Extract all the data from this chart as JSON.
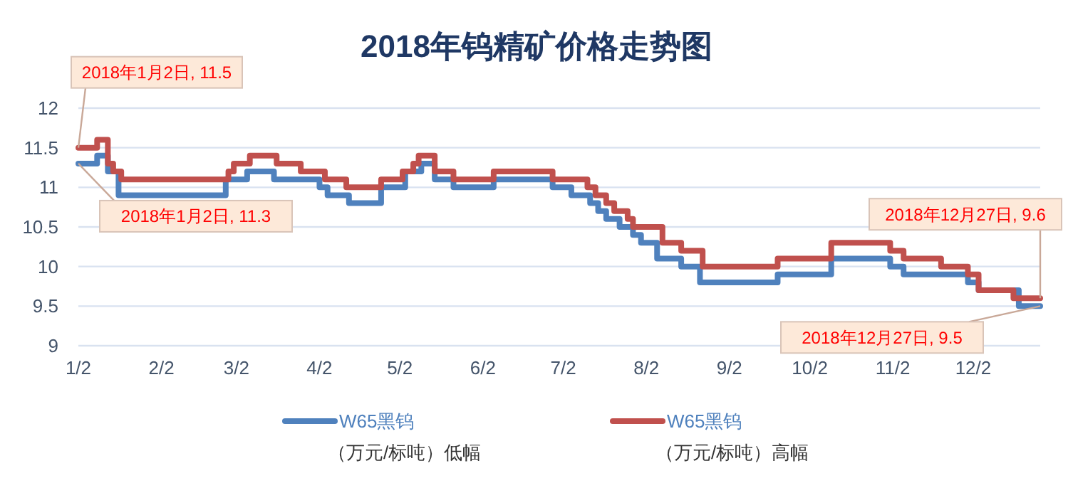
{
  "chart_data": {
    "type": "step",
    "title": "2018年钨精矿价格走势图",
    "xlim": [
      "2018-01-02",
      "2018-12-27"
    ],
    "xticks": [
      {
        "value": "2018-01-02",
        "label": "1/2"
      },
      {
        "value": "2018-02-02",
        "label": "2/2"
      },
      {
        "value": "2018-03-02",
        "label": "3/2"
      },
      {
        "value": "2018-04-02",
        "label": "4/2"
      },
      {
        "value": "2018-05-02",
        "label": "5/2"
      },
      {
        "value": "2018-06-02",
        "label": "6/2"
      },
      {
        "value": "2018-07-02",
        "label": "7/2"
      },
      {
        "value": "2018-08-02",
        "label": "8/2"
      },
      {
        "value": "2018-09-02",
        "label": "9/2"
      },
      {
        "value": "2018-10-02",
        "label": "10/2"
      },
      {
        "value": "2018-11-02",
        "label": "11/2"
      },
      {
        "value": "2018-12-02",
        "label": "12/2"
      }
    ],
    "ylim": [
      9,
      12
    ],
    "yticks": [
      9,
      9.5,
      10,
      10.5,
      11,
      11.5,
      12
    ],
    "grid": "y",
    "legend": "bottom",
    "series": [
      {
        "name": "W65黑钨（万元/标吨）低幅",
        "color": "#4f81bd",
        "x": [
          "2018-01-02",
          "2018-01-09",
          "2018-01-13",
          "2018-01-17",
          "2018-02-26",
          "2018-03-06",
          "2018-03-16",
          "2018-04-02",
          "2018-04-05",
          "2018-04-13",
          "2018-04-25",
          "2018-05-04",
          "2018-05-10",
          "2018-05-15",
          "2018-05-22",
          "2018-06-06",
          "2018-06-28",
          "2018-07-05",
          "2018-07-12",
          "2018-07-15",
          "2018-07-18",
          "2018-07-23",
          "2018-07-28",
          "2018-07-31",
          "2018-08-06",
          "2018-08-15",
          "2018-08-22",
          "2018-09-20",
          "2018-10-10",
          "2018-11-01",
          "2018-11-06",
          "2018-11-30",
          "2018-12-04",
          "2018-12-19",
          "2018-12-27"
        ],
        "values": [
          11.3,
          11.4,
          11.2,
          10.9,
          11.1,
          11.2,
          11.1,
          11.0,
          10.9,
          10.8,
          11.0,
          11.2,
          11.3,
          11.1,
          11.0,
          11.1,
          11.0,
          10.9,
          10.8,
          10.7,
          10.6,
          10.5,
          10.4,
          10.3,
          10.1,
          10.0,
          9.8,
          9.9,
          10.1,
          10.0,
          9.9,
          9.8,
          9.7,
          9.5,
          9.5
        ]
      },
      {
        "name": "W65黑钨（万元/标吨）高幅",
        "color": "#c0504d",
        "x": [
          "2018-01-02",
          "2018-01-09",
          "2018-01-13",
          "2018-01-15",
          "2018-01-18",
          "2018-02-27",
          "2018-03-01",
          "2018-03-07",
          "2018-03-17",
          "2018-03-26",
          "2018-04-04",
          "2018-04-12",
          "2018-04-25",
          "2018-05-03",
          "2018-05-07",
          "2018-05-09",
          "2018-05-15",
          "2018-05-22",
          "2018-06-06",
          "2018-06-28",
          "2018-07-11",
          "2018-07-14",
          "2018-07-18",
          "2018-07-21",
          "2018-07-26",
          "2018-07-28",
          "2018-08-08",
          "2018-08-15",
          "2018-08-23",
          "2018-09-20",
          "2018-10-10",
          "2018-11-01",
          "2018-11-06",
          "2018-11-20",
          "2018-11-30",
          "2018-12-04",
          "2018-12-17",
          "2018-12-27"
        ],
        "values": [
          11.5,
          11.6,
          11.3,
          11.2,
          11.1,
          11.2,
          11.3,
          11.4,
          11.3,
          11.2,
          11.1,
          11.0,
          11.1,
          11.2,
          11.3,
          11.4,
          11.2,
          11.1,
          11.2,
          11.1,
          11.0,
          10.9,
          10.8,
          10.7,
          10.6,
          10.5,
          10.3,
          10.2,
          10.0,
          10.1,
          10.3,
          10.2,
          10.1,
          10.0,
          9.9,
          9.7,
          9.6,
          9.6
        ]
      }
    ],
    "annotations": [
      {
        "text": "2018年1月2日, 11.5",
        "x": "2018-01-02",
        "y": 11.5
      },
      {
        "text": "2018年1月2日, 11.3",
        "x": "2018-01-02",
        "y": 11.3
      },
      {
        "text": "2018年12月27日, 9.6",
        "x": "2018-12-27",
        "y": 9.6
      },
      {
        "text": "2018年12月27日, 9.5",
        "x": "2018-12-27",
        "y": 9.5
      }
    ]
  }
}
